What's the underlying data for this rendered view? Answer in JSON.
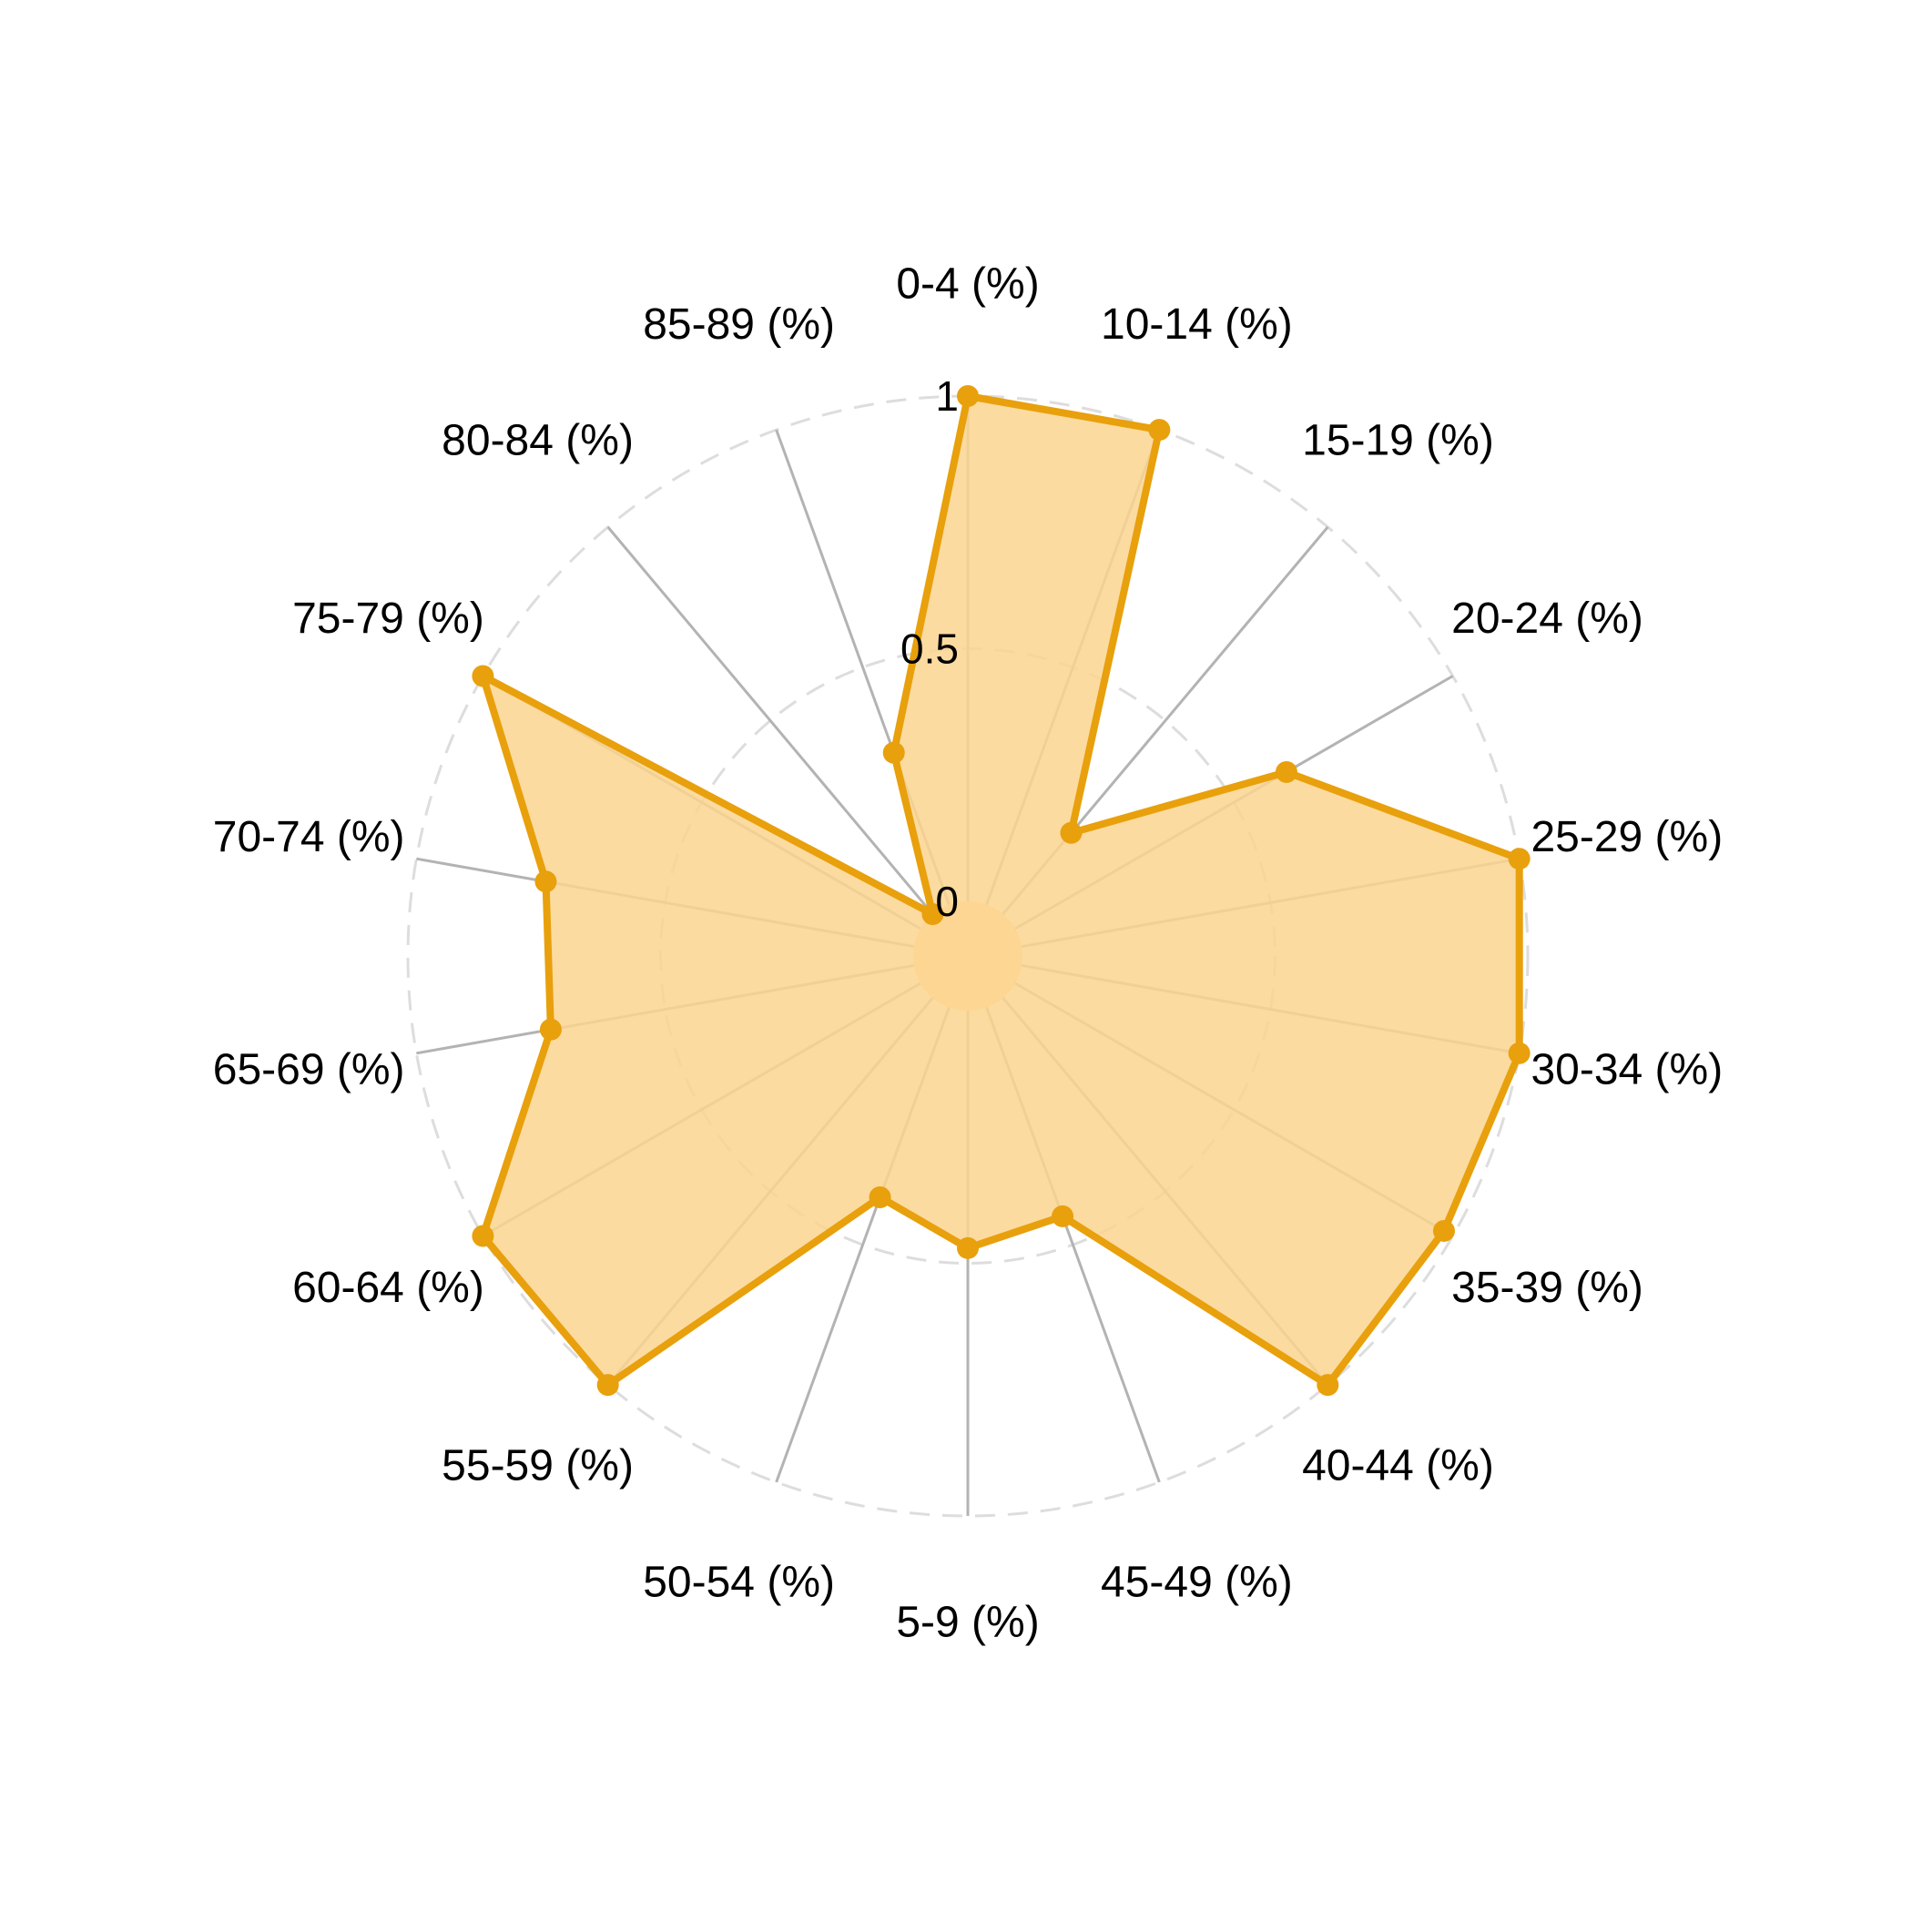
{
  "chart_data": {
    "type": "radar",
    "categories": [
      "0-4 (%)",
      "10-14 (%)",
      "15-19 (%)",
      "20-24 (%)",
      "25-29 (%)",
      "30-34 (%)",
      "35-39 (%)",
      "40-44 (%)",
      "45-49 (%)",
      "5-9 (%)",
      "50-54 (%)",
      "55-59 (%)",
      "60-64 (%)",
      "65-69 (%)",
      "70-74 (%)",
      "75-79 (%)",
      "80-84 (%)",
      "85-89 (%)"
    ],
    "series": [
      {
        "values": [
          1.0,
          1.0,
          0.21,
          0.62,
          1.0,
          1.0,
          0.98,
          1.0,
          0.44,
          0.47,
          0.4,
          1.0,
          1.0,
          0.73,
          0.74,
          1.0,
          0.0,
          0.32
        ],
        "line_color": "#E8A00C",
        "fill_color": "#FCD58F"
      }
    ],
    "rlim": [
      0,
      1
    ],
    "r_ticks": [
      0,
      0.5,
      1
    ],
    "r_tick_labels": [
      "0",
      "0.5",
      "1"
    ],
    "grid": true,
    "spoke_color": "#B3B3B3",
    "grid_color": "#DDDDDD"
  }
}
